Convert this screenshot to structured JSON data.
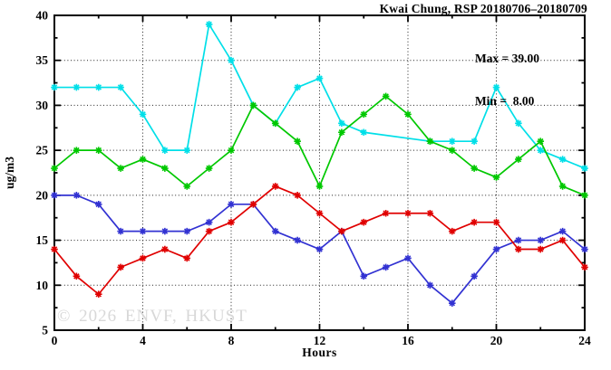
{
  "title": "Kwai Chung, RSP 20180706–20180709",
  "legend": {
    "max_label": "Max = 39.00",
    "min_label": "Min =  8.00"
  },
  "watermark": "© 2026 ENVF, HKUST",
  "chart_data": {
    "type": "line",
    "title": "Kwai Chung, RSP 20180706–20180709",
    "xlabel": "Hours",
    "ylabel": "ug/m3",
    "xlim": [
      0,
      24
    ],
    "ylim": [
      5,
      40
    ],
    "x_major_ticks": [
      0,
      4,
      8,
      12,
      16,
      20,
      24
    ],
    "x_minor_ticks": [
      2,
      6,
      10,
      14,
      18,
      22
    ],
    "y_major_ticks": [
      5,
      10,
      15,
      20,
      25,
      30,
      35,
      40
    ],
    "y_minor_ticks": [
      7.5,
      12.5,
      17.5,
      22.5,
      27.5,
      32.5,
      37.5
    ],
    "grid": {
      "horizontal": [
        10,
        15,
        20,
        25,
        30,
        35
      ],
      "vertical": [
        4,
        8,
        12,
        16,
        20
      ],
      "style": "dotted"
    },
    "legend_position": "top-right-inside",
    "stats": {
      "max": 39.0,
      "min": 8.0
    },
    "x": [
      0,
      1,
      2,
      3,
      4,
      5,
      6,
      7,
      8,
      9,
      10,
      11,
      12,
      13,
      14,
      15,
      16,
      17,
      18,
      19,
      20,
      21,
      22,
      23,
      24
    ],
    "series": [
      {
        "name": "cyan",
        "color": "#00dfe8",
        "values": [
          32,
          32,
          32,
          32,
          29,
          25,
          25,
          39,
          35,
          30,
          28,
          32,
          33,
          28,
          27,
          null,
          null,
          26,
          26,
          26,
          32,
          28,
          25,
          24,
          23
        ]
      },
      {
        "name": "green",
        "color": "#00c800",
        "values": [
          23,
          25,
          25,
          23,
          24,
          23,
          21,
          23,
          25,
          30,
          28,
          26,
          21,
          27,
          29,
          31,
          29,
          26,
          25,
          23,
          22,
          24,
          26,
          21,
          20
        ]
      },
      {
        "name": "blue",
        "color": "#3232d2",
        "values": [
          20,
          20,
          19,
          16,
          16,
          16,
          16,
          17,
          19,
          19,
          16,
          15,
          14,
          16,
          11,
          12,
          13,
          10,
          8,
          11,
          14,
          15,
          15,
          16,
          14
        ]
      },
      {
        "name": "red",
        "color": "#e00000",
        "values": [
          14,
          11,
          9,
          12,
          13,
          14,
          13,
          16,
          17,
          19,
          21,
          20,
          18,
          16,
          17,
          18,
          18,
          18,
          16,
          17,
          17,
          14,
          14,
          15,
          12
        ]
      }
    ]
  }
}
